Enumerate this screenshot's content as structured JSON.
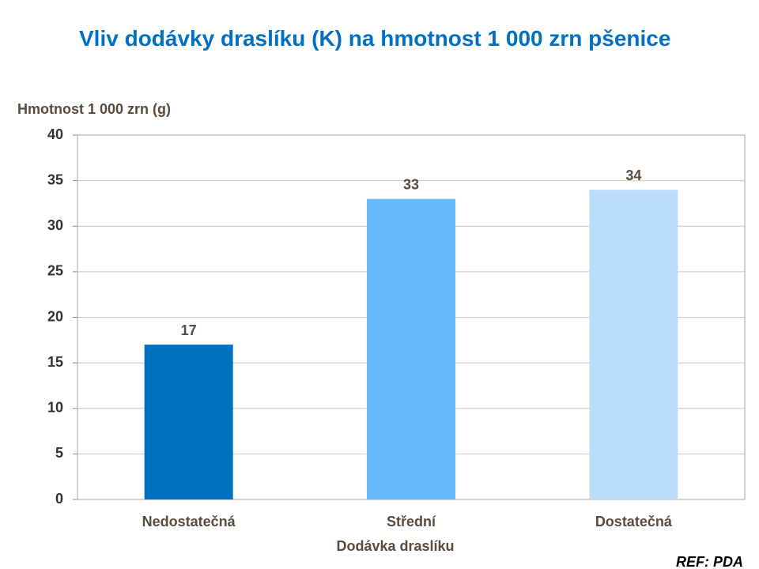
{
  "chart_data": {
    "type": "bar",
    "title": "Vliv dodávky draslíku (K) na hmotnost 1 000 zrn pšenice",
    "y_label": "Hmotnost 1 000 zrn (g)",
    "x_label": "Dodávka draslíku",
    "note": "REF: PDA",
    "categories": [
      "Nedostatečná",
      "Střední",
      "Dostatečná"
    ],
    "values": [
      17,
      33,
      34
    ],
    "colors": [
      "#0070c0",
      "#66bbff",
      "#b9ddfb"
    ],
    "ylim": [
      0,
      40
    ],
    "yticks": [
      0,
      5,
      10,
      15,
      20,
      25,
      30,
      35,
      40
    ],
    "grid": true
  }
}
